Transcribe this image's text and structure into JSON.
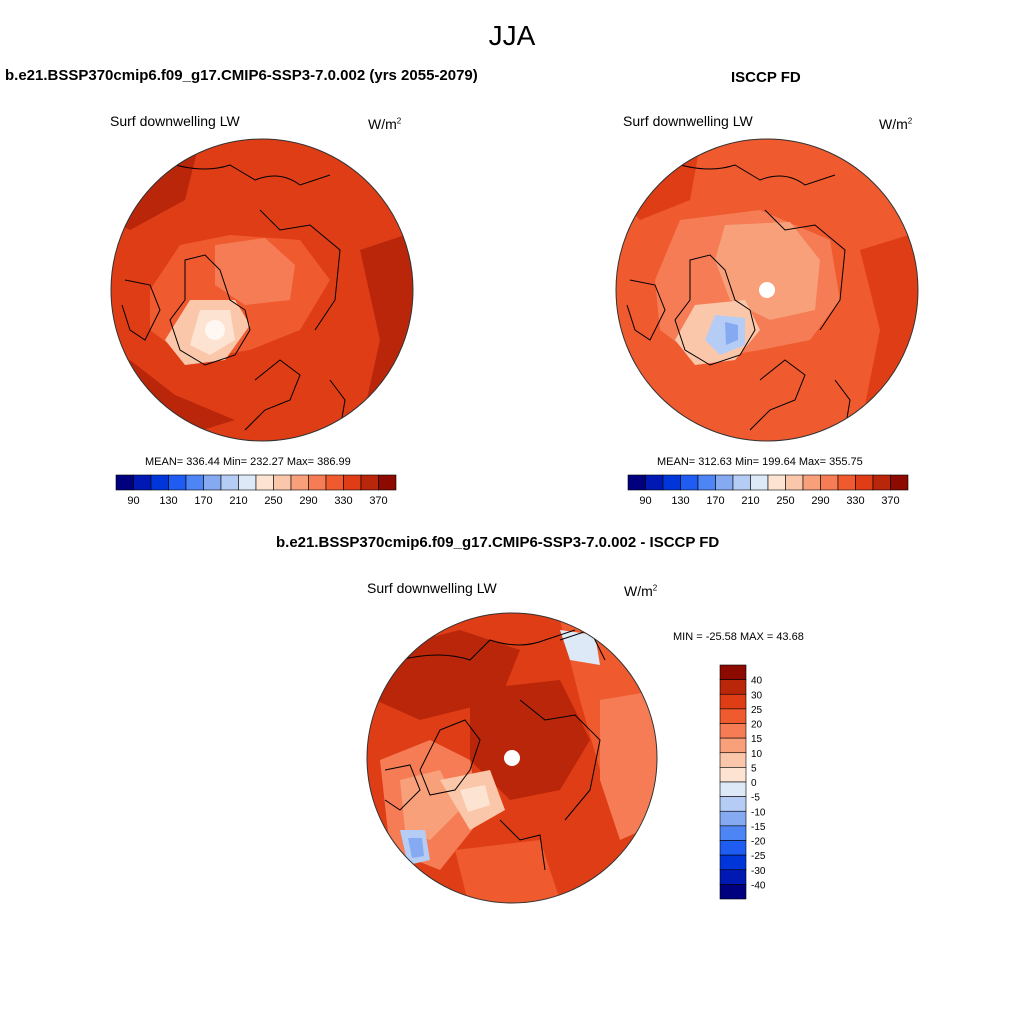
{
  "season": "JJA",
  "panels": [
    {
      "title": "b.e21.BSSP370cmip6.f09_g17.CMIP6-SSP3-7.0.002 (yrs 2055-2079)",
      "variable": "Surf downwelling LW",
      "units": "W/m",
      "units_exp": "2",
      "stats": "MEAN= 336.44  Min= 232.27  Max= 386.99",
      "has_pole_hole": false
    },
    {
      "title": "ISCCP FD",
      "variable": "Surf downwelling LW",
      "units": "W/m",
      "units_exp": "2",
      "stats": "MEAN= 312.63  Min= 199.64  Max= 355.75",
      "has_pole_hole": true
    },
    {
      "title": "b.e21.BSSP370cmip6.f09_g17.CMIP6-SSP3-7.0.002 - ISCCP FD",
      "variable": "Surf downwelling LW",
      "units": "W/m",
      "units_exp": "2",
      "stats": "MIN = -25.58 MAX =  43.68",
      "has_pole_hole": true
    }
  ],
  "field_colorbar": {
    "colors": [
      "#00007f",
      "#0019b2",
      "#0036d9",
      "#1f5cf2",
      "#4d85f5",
      "#85aaf2",
      "#b5cdf5",
      "#dde9f7",
      "#fde4d2",
      "#fbc7aa",
      "#f7a07a",
      "#f57c55",
      "#ef5a2f",
      "#df3d16",
      "#b9260a",
      "#8c0a00"
    ],
    "labels": [
      "90",
      "130",
      "170",
      "210",
      "250",
      "290",
      "330",
      "370"
    ]
  },
  "diff_colorbar": {
    "colors": [
      "#8c0a00",
      "#b9260a",
      "#df3d16",
      "#ef5a2f",
      "#f57c55",
      "#f7a07a",
      "#fbc7aa",
      "#fde4d2",
      "#dde9f7",
      "#b5cdf5",
      "#85aaf2",
      "#4d85f5",
      "#1f5cf2",
      "#0036d9",
      "#0019b2",
      "#00007f"
    ],
    "labels": [
      "40",
      "30",
      "25",
      "20",
      "15",
      "10",
      "5",
      "0",
      "-5",
      "-10",
      "-15",
      "-20",
      "-25",
      "-30",
      "-40"
    ]
  }
}
